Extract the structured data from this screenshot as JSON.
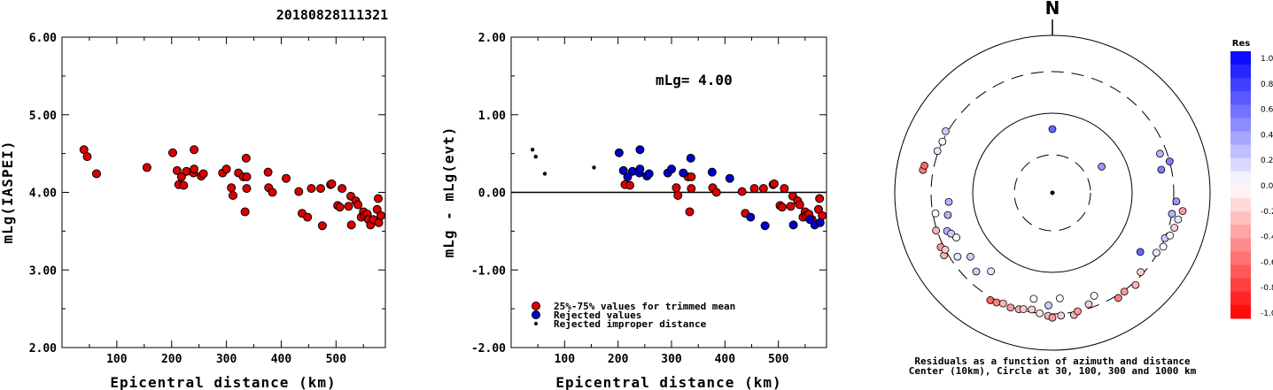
{
  "title": "20180828111321",
  "chart_data": [
    {
      "type": "scatter",
      "ylabel": "mLg(IASPEI)",
      "xlabel": "Epicentral distance (km)",
      "xlim": [
        0,
        590
      ],
      "ylim": [
        2.0,
        6.0
      ],
      "xticks": [
        100,
        200,
        300,
        400,
        500
      ],
      "xtick_labels": [
        "100",
        "200",
        "300",
        "400",
        "500"
      ],
      "yticks": [
        2.0,
        3.0,
        4.0,
        5.0,
        6.0
      ],
      "ytick_labels": [
        "2.00",
        "3.00",
        "4.00",
        "5.00",
        "6.00"
      ],
      "series": [
        {
          "marker_color": "#dd0000",
          "points": [
            [
              40,
              4.55
            ],
            [
              46,
              4.46
            ],
            [
              63,
              4.24
            ],
            [
              155,
              4.32
            ],
            [
              202,
              4.51
            ],
            [
              210,
              4.28
            ],
            [
              213,
              4.1
            ],
            [
              218,
              4.2
            ],
            [
              222,
              4.09
            ],
            [
              227,
              4.27
            ],
            [
              240,
              4.25
            ],
            [
              241,
              4.55
            ],
            [
              241,
              4.3
            ],
            [
              254,
              4.21
            ],
            [
              258,
              4.24
            ],
            [
              293,
              4.25
            ],
            [
              300,
              4.3
            ],
            [
              309,
              4.06
            ],
            [
              312,
              3.96
            ],
            [
              322,
              4.25
            ],
            [
              331,
              4.2
            ],
            [
              334,
              3.75
            ],
            [
              336,
              4.44
            ],
            [
              337,
              4.05
            ],
            [
              337,
              4.2
            ],
            [
              376,
              4.26
            ],
            [
              377,
              4.06
            ],
            [
              384,
              4.0
            ],
            [
              409,
              4.18
            ],
            [
              432,
              4.01
            ],
            [
              438,
              3.73
            ],
            [
              448,
              3.68
            ],
            [
              455,
              4.05
            ],
            [
              472,
              4.05
            ],
            [
              475,
              3.57
            ],
            [
              490,
              4.1
            ],
            [
              492,
              4.11
            ],
            [
              503,
              3.83
            ],
            [
              507,
              3.81
            ],
            [
              511,
              4.05
            ],
            [
              523,
              3.82
            ],
            [
              527,
              3.95
            ],
            [
              528,
              3.58
            ],
            [
              536,
              3.89
            ],
            [
              540,
              3.84
            ],
            [
              546,
              3.68
            ],
            [
              550,
              3.75
            ],
            [
              552,
              3.7
            ],
            [
              557,
              3.72
            ],
            [
              559,
              3.65
            ],
            [
              563,
              3.58
            ],
            [
              568,
              3.65
            ],
            [
              575,
              3.78
            ],
            [
              577,
              3.92
            ],
            [
              578,
              3.61
            ],
            [
              582,
              3.7
            ]
          ]
        }
      ]
    },
    {
      "type": "scatter",
      "ylabel": "mLg - mLg(evt)",
      "xlabel": "Epicentral distance (km)",
      "xlim": [
        0,
        590
      ],
      "ylim": [
        -2.0,
        2.0
      ],
      "xticks": [
        100,
        200,
        300,
        400,
        500
      ],
      "xtick_labels": [
        "100",
        "200",
        "300",
        "400",
        "500"
      ],
      "yticks": [
        -2.0,
        -1.0,
        0.0,
        1.0,
        2.0
      ],
      "ytick_labels": [
        "-2.00",
        "-1.00",
        "0.00",
        "1.00",
        "2.00"
      ],
      "annotation": "mLg= 4.00",
      "reference_line_y": 0.0,
      "series": [
        {
          "name": "25%-75% values for trimmed mean",
          "marker_color": "#dd0000",
          "points": [
            [
              213,
              0.1
            ],
            [
              222,
              0.09
            ],
            [
              309,
              0.06
            ],
            [
              312,
              -0.04
            ],
            [
              331,
              0.2
            ],
            [
              334,
              -0.25
            ],
            [
              337,
              0.05
            ],
            [
              337,
              0.2
            ],
            [
              377,
              0.06
            ],
            [
              384,
              0.0
            ],
            [
              432,
              0.01
            ],
            [
              438,
              -0.27
            ],
            [
              455,
              0.05
            ],
            [
              472,
              0.05
            ],
            [
              490,
              0.1
            ],
            [
              492,
              0.11
            ],
            [
              503,
              -0.17
            ],
            [
              507,
              -0.19
            ],
            [
              511,
              0.05
            ],
            [
              523,
              -0.18
            ],
            [
              527,
              -0.05
            ],
            [
              536,
              -0.11
            ],
            [
              540,
              -0.16
            ],
            [
              546,
              -0.32
            ],
            [
              550,
              -0.25
            ],
            [
              552,
              -0.3
            ],
            [
              557,
              -0.28
            ],
            [
              563,
              -0.35
            ],
            [
              575,
              -0.22
            ],
            [
              577,
              -0.08
            ],
            [
              582,
              -0.3
            ]
          ]
        },
        {
          "name": "Rejected values",
          "marker_color": "#0000cc",
          "points": [
            [
              202,
              0.51
            ],
            [
              210,
              0.28
            ],
            [
              218,
              0.2
            ],
            [
              227,
              0.27
            ],
            [
              240,
              0.25
            ],
            [
              241,
              0.55
            ],
            [
              241,
              0.3
            ],
            [
              254,
              0.21
            ],
            [
              258,
              0.24
            ],
            [
              293,
              0.25
            ],
            [
              300,
              0.3
            ],
            [
              322,
              0.25
            ],
            [
              336,
              0.44
            ],
            [
              376,
              0.26
            ],
            [
              409,
              0.18
            ],
            [
              448,
              -0.32
            ],
            [
              475,
              -0.43
            ],
            [
              528,
              -0.42
            ],
            [
              559,
              -0.35
            ],
            [
              568,
              -0.42
            ],
            [
              578,
              -0.39
            ]
          ]
        },
        {
          "name": "Rejected improper distance",
          "marker_color": "#000000",
          "marker_size": "small",
          "points": [
            [
              40,
              0.55
            ],
            [
              46,
              0.46
            ],
            [
              63,
              0.24
            ],
            [
              155,
              0.32
            ]
          ]
        }
      ],
      "legend_position": "bottom-left"
    },
    {
      "type": "polar-scatter",
      "north_label": "N",
      "caption_line1": "Residuals as a function of azimuth and distance",
      "caption_line2": "Center (10km), Circle at 30, 100, 300 and 1000 km",
      "rings_km": [
        30,
        100,
        300,
        1000
      ],
      "colorbar": {
        "title": "Res",
        "range": [
          -1.0,
          1.0
        ],
        "tick_labels": [
          "1.0",
          "0.8",
          "0.6",
          "0.4",
          "0.2",
          "0.0",
          "-0.2",
          "-0.4",
          "-0.6",
          "-0.8",
          "-1.0"
        ],
        "positive_color": "#0000ff",
        "negative_color": "#ff0000"
      },
      "points": [
        {
          "az": 0,
          "dist_km": 63,
          "res": 0.6
        },
        {
          "az": 62,
          "dist_km": 50,
          "res": 0.4
        },
        {
          "az": 290,
          "dist_km": 310,
          "res": 0.1
        },
        {
          "az": 295,
          "dist_km": 300,
          "res": 0.0
        },
        {
          "az": 300,
          "dist_km": 320,
          "res": 0.2
        },
        {
          "az": 280,
          "dist_km": 420,
          "res": -0.5
        },
        {
          "az": 282,
          "dist_km": 410,
          "res": -0.6
        },
        {
          "az": 260,
          "dist_km": 280,
          "res": 0.0
        },
        {
          "az": 265,
          "dist_km": 190,
          "res": 0.3
        },
        {
          "az": 258,
          "dist_km": 205,
          "res": 0.3
        },
        {
          "az": 250,
          "dist_km": 235,
          "res": 0.3
        },
        {
          "az": 248,
          "dist_km": 218,
          "res": 0.2
        },
        {
          "az": 245,
          "dist_km": 200,
          "res": 0.0
        },
        {
          "az": 252,
          "dist_km": 310,
          "res": -0.3
        },
        {
          "az": 244,
          "dist_km": 330,
          "res": -0.4
        },
        {
          "az": 240,
          "dist_km": 340,
          "res": -0.3
        },
        {
          "az": 242,
          "dist_km": 300,
          "res": -0.2
        },
        {
          "az": 236,
          "dist_km": 250,
          "res": 0.1
        },
        {
          "az": 232,
          "dist_km": 190,
          "res": 0.2
        },
        {
          "az": 224,
          "dist_km": 220,
          "res": 0.2
        },
        {
          "az": 218,
          "dist_km": 170,
          "res": 0.1
        },
        {
          "az": 210,
          "dist_km": 330,
          "res": -0.6
        },
        {
          "az": 207,
          "dist_km": 320,
          "res": -0.5
        },
        {
          "az": 204,
          "dist_km": 300,
          "res": -0.3
        },
        {
          "az": 200,
          "dist_km": 310,
          "res": -0.4
        },
        {
          "az": 196,
          "dist_km": 300,
          "res": -0.3
        },
        {
          "az": 194,
          "dist_km": 290,
          "res": -0.2
        },
        {
          "az": 190,
          "dist_km": 280,
          "res": -0.2
        },
        {
          "az": 186,
          "dist_km": 300,
          "res": -0.1
        },
        {
          "az": 182,
          "dist_km": 320,
          "res": -0.3
        },
        {
          "az": 180,
          "dist_km": 340,
          "res": -0.4
        },
        {
          "az": 176,
          "dist_km": 320,
          "res": -0.2
        },
        {
          "az": 170,
          "dist_km": 330,
          "res": -0.3
        },
        {
          "az": 168,
          "dist_km": 300,
          "res": -0.4
        },
        {
          "az": 162,
          "dist_km": 270,
          "res": -0.2
        },
        {
          "az": 158,
          "dist_km": 230,
          "res": 0.0
        },
        {
          "az": 182,
          "dist_km": 240,
          "res": 0.2
        },
        {
          "az": 176,
          "dist_km": 200,
          "res": 0.0
        },
        {
          "az": 190,
          "dist_km": 210,
          "res": 0.0
        },
        {
          "az": 148,
          "dist_km": 330,
          "res": -0.5
        },
        {
          "az": 144,
          "dist_km": 310,
          "res": -0.4
        },
        {
          "az": 138,
          "dist_km": 330,
          "res": -0.3
        },
        {
          "az": 132,
          "dist_km": 280,
          "res": -0.2
        },
        {
          "az": 124,
          "dist_km": 200,
          "res": 0.6
        },
        {
          "az": 120,
          "dist_km": 290,
          "res": 0.1
        },
        {
          "az": 116,
          "dist_km": 320,
          "res": 0.0
        },
        {
          "az": 112,
          "dist_km": 300,
          "res": 0.2
        },
        {
          "az": 110,
          "dist_km": 340,
          "res": 0.0
        },
        {
          "az": 106,
          "dist_km": 360,
          "res": -0.2
        },
        {
          "az": 102,
          "dist_km": 380,
          "res": 0.1
        },
        {
          "az": 100,
          "dist_km": 300,
          "res": 0.3
        },
        {
          "az": 98,
          "dist_km": 420,
          "res": -0.4
        },
        {
          "az": 94,
          "dist_km": 330,
          "res": 0.4
        },
        {
          "az": 78,
          "dist_km": 230,
          "res": 0.5
        },
        {
          "az": 75,
          "dist_km": 300,
          "res": 0.5
        },
        {
          "az": 70,
          "dist_km": 250,
          "res": 0.3
        }
      ]
    }
  ],
  "icons": {
    "marker": "circle"
  }
}
